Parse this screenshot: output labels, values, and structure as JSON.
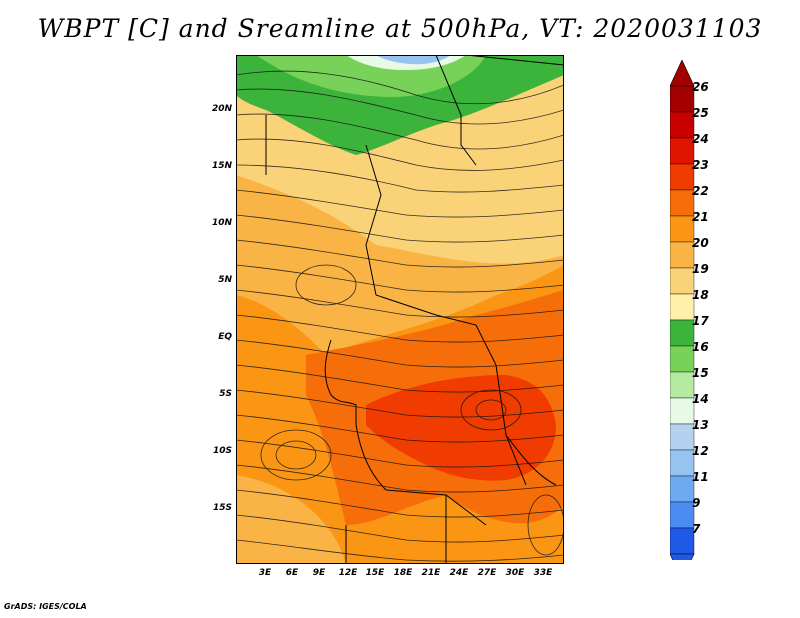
{
  "title": "WBPT [C] and Sreamline at 500hPa, VT: 2020031103",
  "credit": "GrADS: IGES/COLA",
  "lat_labels": [
    "20N",
    "15N",
    "10N",
    "5N",
    "EQ",
    "5S",
    "10S",
    "15S"
  ],
  "lon_labels": [
    "3E",
    "6E",
    "9E",
    "12E",
    "15E",
    "18E",
    "21E",
    "24E",
    "27E",
    "30E",
    "33E"
  ],
  "colorbar": {
    "labels": [
      "26",
      "25",
      "24",
      "23",
      "22",
      "21",
      "20",
      "19",
      "18",
      "17",
      "16",
      "15",
      "14",
      "13",
      "12",
      "11",
      "9",
      "7"
    ],
    "colors": [
      "#a50000",
      "#c80000",
      "#e11400",
      "#f03c00",
      "#f56e0a",
      "#fa9614",
      "#fab446",
      "#fad278",
      "#fff0aa",
      "#3cb43c",
      "#78d25a",
      "#b4eba0",
      "#e6fae6",
      "#b4d2f0",
      "#96c3f0",
      "#6eaaf0",
      "#4b8cf0",
      "#1e5ae6"
    ]
  },
  "map": {
    "lon_range": [
      0,
      35
    ],
    "lat_range": [
      -20,
      25
    ],
    "field": "wet-bulb potential temperature",
    "overlay": "streamlines",
    "boundaries": "country borders"
  }
}
